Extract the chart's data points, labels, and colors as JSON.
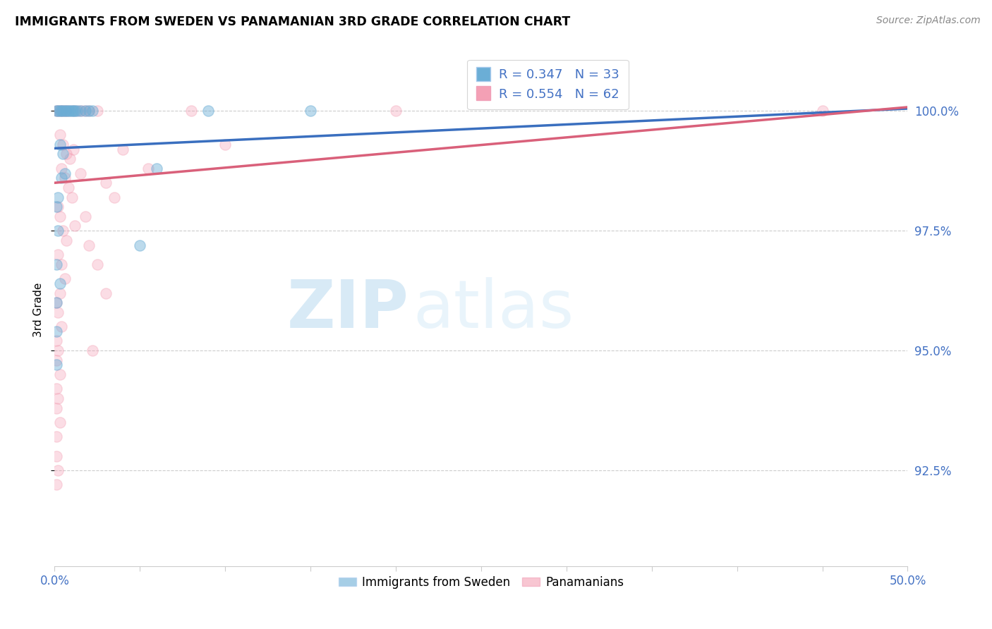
{
  "title": "IMMIGRANTS FROM SWEDEN VS PANAMANIAN 3RD GRADE CORRELATION CHART",
  "source": "Source: ZipAtlas.com",
  "ylabel_left": "3rd Grade",
  "blue_color": "#6baed6",
  "pink_color": "#f4a0b5",
  "blue_line_color": "#3a6fbf",
  "pink_line_color": "#d9607a",
  "watermark_zip": "ZIP",
  "watermark_atlas": "atlas",
  "R_blue": 0.347,
  "N_blue": 33,
  "R_pink": 0.554,
  "N_pink": 62,
  "blue_line_x0": 0.0,
  "blue_line_y0": 99.22,
  "blue_line_x1": 0.5,
  "blue_line_y1": 100.05,
  "pink_line_x0": 0.0,
  "pink_line_y0": 98.5,
  "pink_line_x1": 0.5,
  "pink_line_y1": 100.08,
  "blue_points": [
    [
      0.001,
      100.0
    ],
    [
      0.002,
      100.0
    ],
    [
      0.003,
      100.0
    ],
    [
      0.004,
      100.0
    ],
    [
      0.005,
      100.0
    ],
    [
      0.006,
      100.0
    ],
    [
      0.007,
      100.0
    ],
    [
      0.008,
      100.0
    ],
    [
      0.009,
      100.0
    ],
    [
      0.01,
      100.0
    ],
    [
      0.011,
      100.0
    ],
    [
      0.012,
      100.0
    ],
    [
      0.013,
      100.0
    ],
    [
      0.015,
      100.0
    ],
    [
      0.018,
      100.0
    ],
    [
      0.02,
      100.0
    ],
    [
      0.022,
      100.0
    ],
    [
      0.003,
      99.3
    ],
    [
      0.005,
      99.1
    ],
    [
      0.004,
      98.6
    ],
    [
      0.006,
      98.7
    ],
    [
      0.002,
      98.2
    ],
    [
      0.001,
      98.0
    ],
    [
      0.002,
      97.5
    ],
    [
      0.001,
      96.8
    ],
    [
      0.003,
      96.4
    ],
    [
      0.001,
      96.0
    ],
    [
      0.001,
      95.4
    ],
    [
      0.001,
      94.7
    ],
    [
      0.06,
      98.8
    ],
    [
      0.09,
      100.0
    ],
    [
      0.15,
      100.0
    ],
    [
      0.05,
      97.2
    ]
  ],
  "pink_points": [
    [
      0.001,
      100.0
    ],
    [
      0.002,
      100.0
    ],
    [
      0.003,
      100.0
    ],
    [
      0.004,
      100.0
    ],
    [
      0.005,
      100.0
    ],
    [
      0.006,
      100.0
    ],
    [
      0.007,
      100.0
    ],
    [
      0.008,
      100.0
    ],
    [
      0.01,
      100.0
    ],
    [
      0.012,
      100.0
    ],
    [
      0.014,
      100.0
    ],
    [
      0.016,
      100.0
    ],
    [
      0.018,
      100.0
    ],
    [
      0.02,
      100.0
    ],
    [
      0.025,
      100.0
    ],
    [
      0.003,
      99.5
    ],
    [
      0.005,
      99.3
    ],
    [
      0.007,
      99.1
    ],
    [
      0.009,
      99.0
    ],
    [
      0.004,
      98.8
    ],
    [
      0.006,
      98.6
    ],
    [
      0.008,
      98.4
    ],
    [
      0.01,
      98.2
    ],
    [
      0.002,
      98.0
    ],
    [
      0.003,
      97.8
    ],
    [
      0.005,
      97.5
    ],
    [
      0.007,
      97.3
    ],
    [
      0.002,
      97.0
    ],
    [
      0.004,
      96.8
    ],
    [
      0.006,
      96.5
    ],
    [
      0.003,
      96.2
    ],
    [
      0.001,
      96.0
    ],
    [
      0.002,
      95.8
    ],
    [
      0.004,
      95.5
    ],
    [
      0.001,
      95.2
    ],
    [
      0.002,
      95.0
    ],
    [
      0.001,
      94.8
    ],
    [
      0.003,
      94.5
    ],
    [
      0.001,
      94.2
    ],
    [
      0.002,
      94.0
    ],
    [
      0.001,
      93.8
    ],
    [
      0.003,
      93.5
    ],
    [
      0.001,
      93.2
    ],
    [
      0.001,
      92.8
    ],
    [
      0.002,
      92.5
    ],
    [
      0.001,
      92.2
    ],
    [
      0.04,
      99.2
    ],
    [
      0.055,
      98.8
    ],
    [
      0.08,
      100.0
    ],
    [
      0.015,
      98.7
    ],
    [
      0.018,
      97.8
    ],
    [
      0.02,
      97.2
    ],
    [
      0.025,
      96.8
    ],
    [
      0.03,
      96.2
    ],
    [
      0.012,
      97.6
    ],
    [
      0.022,
      95.0
    ],
    [
      0.035,
      98.2
    ],
    [
      0.2,
      100.0
    ],
    [
      0.45,
      100.0
    ],
    [
      0.1,
      99.3
    ],
    [
      0.03,
      98.5
    ],
    [
      0.011,
      99.2
    ]
  ],
  "xmin": 0.0,
  "xmax": 0.5,
  "ymin": 90.5,
  "ymax": 101.2,
  "yticks": [
    92.5,
    95.0,
    97.5,
    100.0
  ],
  "right_tick_color": "#4472c4"
}
